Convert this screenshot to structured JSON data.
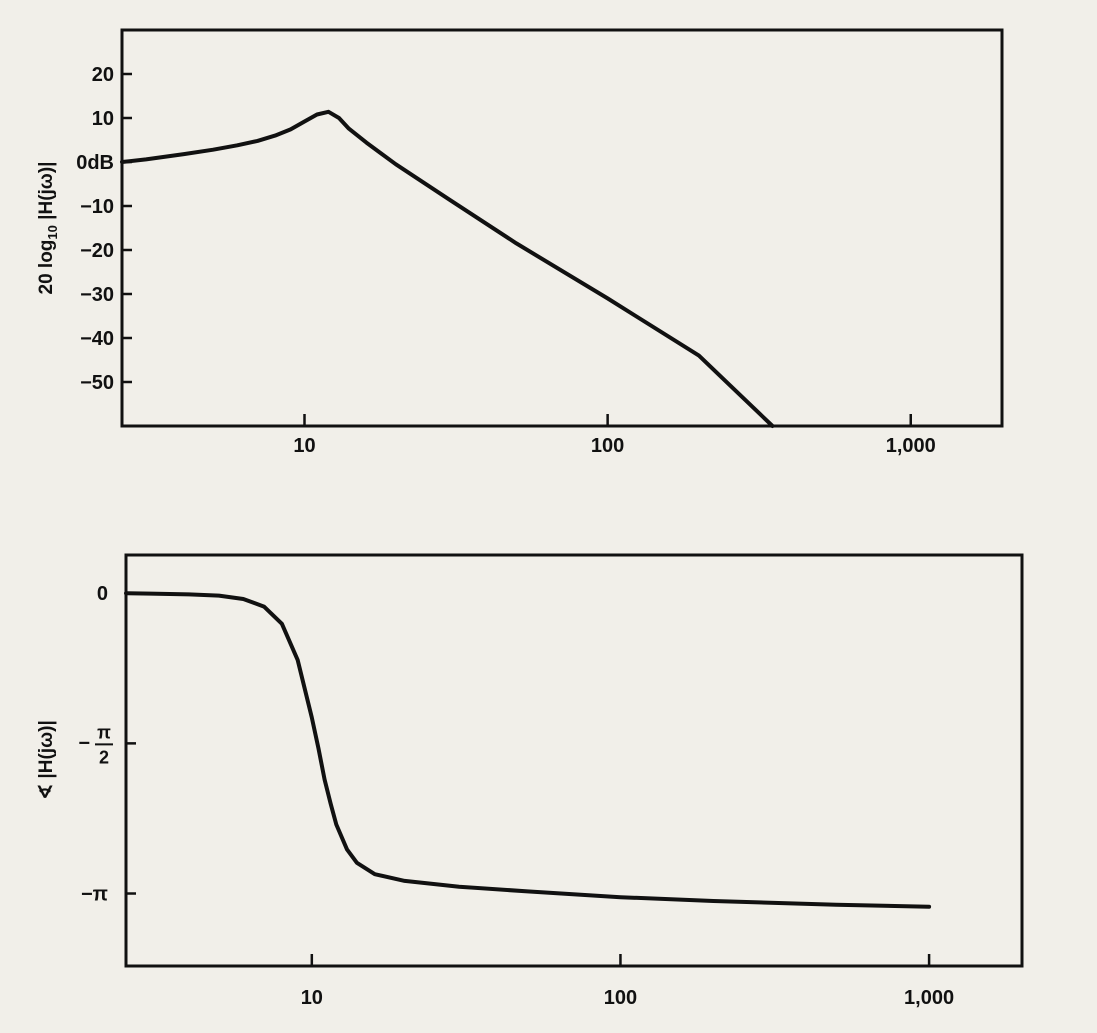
{
  "chart_data": [
    {
      "type": "line",
      "title": "",
      "xlabel": "",
      "ylabel": "20 log10 |H(jω)|",
      "ylabel_main": "20 log",
      "ylabel_sub": "10",
      "ylabel_rest": " |H(jω)|",
      "x_scale": "log",
      "xlim": [
        2.5,
        2000
      ],
      "ylim": [
        -60,
        30
      ],
      "grid": false,
      "x_ticks": [
        {
          "value": 10,
          "label": "10"
        },
        {
          "value": 100,
          "label": "100"
        },
        {
          "value": 1000,
          "label": "1,000"
        }
      ],
      "y_ticks": [
        {
          "value": 20,
          "label": "20"
        },
        {
          "value": 10,
          "label": "10"
        },
        {
          "value": 0,
          "label": "0dB"
        },
        {
          "value": -10,
          "label": "−10"
        },
        {
          "value": -20,
          "label": "−20"
        },
        {
          "value": -30,
          "label": "−30"
        },
        {
          "value": -40,
          "label": "−40"
        },
        {
          "value": -50,
          "label": "−50"
        }
      ],
      "series": [
        {
          "name": "magnitude",
          "x": [
            2.5,
            3,
            4,
            5,
            6,
            7,
            8,
            9,
            10,
            11,
            12,
            13,
            14,
            16,
            20,
            30,
            50,
            100,
            200,
            350
          ],
          "y": [
            0,
            0.6,
            1.8,
            2.8,
            3.8,
            4.8,
            6.0,
            7.4,
            9.2,
            10.8,
            11.4,
            10.0,
            7.6,
            4.4,
            -0.5,
            -8.5,
            -18.5,
            -31,
            -44,
            -60
          ]
        }
      ]
    },
    {
      "type": "line",
      "title": "",
      "xlabel": "",
      "ylabel": "∢ |H(jω)|",
      "ylabel_sym": "∢",
      "ylabel_rest": " |H(jω)|",
      "x_scale": "log",
      "xlim": [
        2.5,
        2000
      ],
      "ylim": [
        -3.9,
        0.4
      ],
      "grid": false,
      "x_ticks": [
        {
          "value": 10,
          "label": "10"
        },
        {
          "value": 100,
          "label": "100"
        },
        {
          "value": 1000,
          "label": "1,000"
        }
      ],
      "y_ticks": [
        {
          "value": 0,
          "label_parts": [
            "0"
          ]
        },
        {
          "value": -1.5708,
          "label_parts": [
            "−",
            "π",
            "2"
          ]
        },
        {
          "value": -3.1416,
          "label_parts": [
            "−π"
          ]
        }
      ],
      "series": [
        {
          "name": "phase",
          "x": [
            2.5,
            3,
            4,
            5,
            6,
            7,
            8,
            9,
            10,
            10.5,
            11,
            11.5,
            12,
            13,
            14,
            16,
            20,
            30,
            50,
            100,
            200,
            500,
            1000
          ],
          "y": [
            0,
            -0.004,
            -0.012,
            -0.025,
            -0.06,
            -0.14,
            -0.32,
            -0.7,
            -1.3,
            -1.62,
            -1.95,
            -2.2,
            -2.42,
            -2.68,
            -2.82,
            -2.94,
            -3.01,
            -3.07,
            -3.12,
            -3.18,
            -3.22,
            -3.26,
            -3.28
          ]
        }
      ]
    }
  ]
}
